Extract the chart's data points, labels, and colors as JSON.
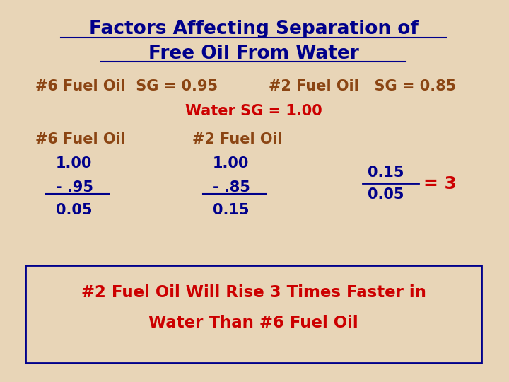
{
  "title_line1": "Factors Affecting Separation of",
  "title_line2": "Free Oil From Water",
  "title_color": "#00008B",
  "background_color": "#E8D5B7",
  "line1_left": "#6 Fuel Oil  SG = 0.95",
  "line1_right": "#2 Fuel Oil   SG = 0.85",
  "line1_color": "#8B4513",
  "water_line": "Water SG = 1.00",
  "water_color": "#CC0000",
  "col1_header": "#6 Fuel Oil",
  "col1_v1": "1.00",
  "col1_v2": "- .95",
  "col1_v3": "0.05",
  "col2_header": "#2 Fuel Oil",
  "col2_v1": "1.00",
  "col2_v2": "- .85",
  "col2_v3": "0.15",
  "col_header_color": "#8B4513",
  "col_vals_color": "#00008B",
  "frac_num": "0.15",
  "frac_den": "0.05",
  "frac_color": "#00008B",
  "eq_text": "= 3",
  "eq_color": "#CC0000",
  "box_text_line1": "#2 Fuel Oil Will Rise 3 Times Faster in",
  "box_text_line2": "Water Than #6 Fuel Oil",
  "box_text_color": "#CC0000",
  "box_edge_color": "#00008B",
  "title_underline_color": "#00008B"
}
